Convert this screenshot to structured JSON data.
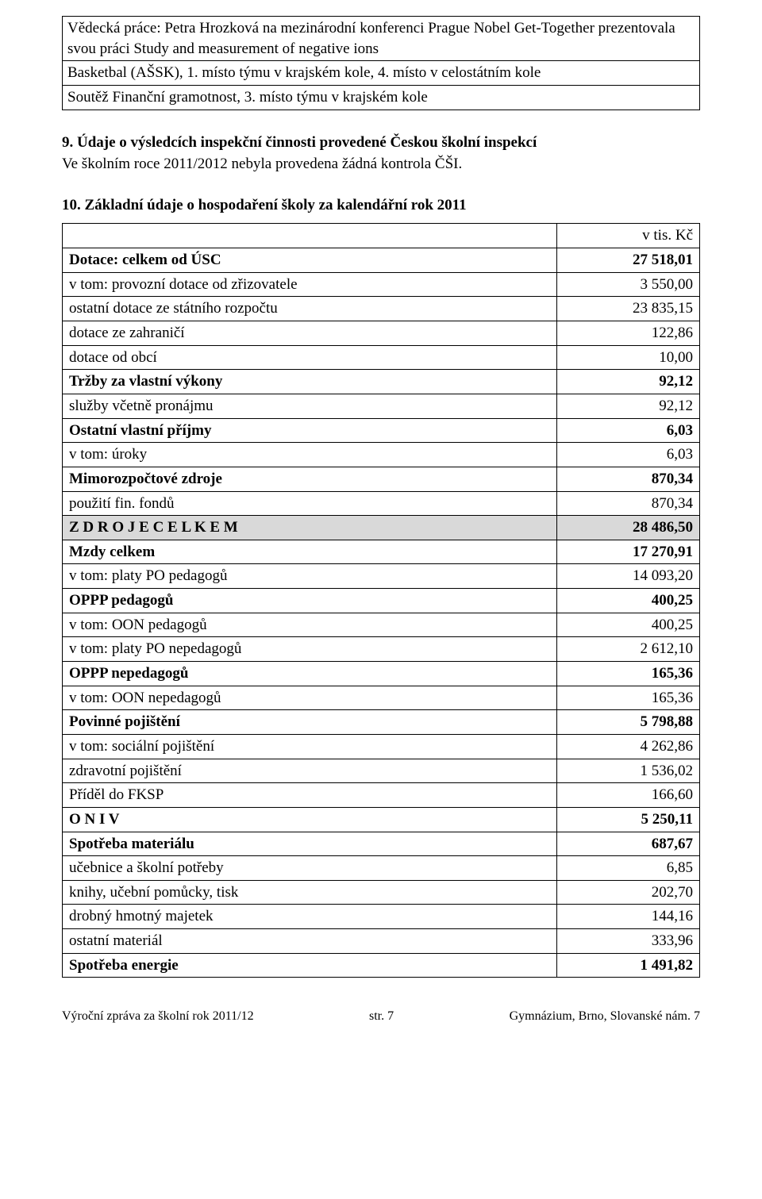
{
  "topBox": {
    "row1": "Vědecká práce: Petra Hrozková na mezinárodní konferenci Prague Nobel Get-Together prezentovala svou práci Study and measurement of negative ions",
    "row2": "Basketbal (AŠSK), 1. místo týmu v krajském kole, 4. místo v celostátním kole",
    "row3": "Soutěž Finanční gramotnost, 3. místo týmu v krajském kole"
  },
  "section9": {
    "heading": "9. Údaje o výsledcích inspekční činnosti provedené Českou školní inspekcí",
    "text": "Ve školním roce 2011/2012 nebyla provedena žádná kontrola ČŠI."
  },
  "section10": {
    "heading": "10. Základní údaje o hospodaření školy za kalendářní rok 2011",
    "header_right": "v tis. Kč",
    "rows": [
      {
        "label": "Dotace: celkem od ÚSC",
        "value": "27 518,01",
        "bold": true
      },
      {
        "label": "v tom: provozní dotace od zřizovatele",
        "value": "3 550,00"
      },
      {
        "label": "ostatní dotace ze státního rozpočtu",
        "value": "23 835,15"
      },
      {
        "label": "dotace ze zahraničí",
        "value": "122,86"
      },
      {
        "label": "dotace od obcí",
        "value": "10,00"
      },
      {
        "label": "Tržby za vlastní výkony",
        "value": "92,12",
        "bold": true
      },
      {
        "label": "služby včetně pronájmu",
        "value": "92,12"
      },
      {
        "label": "Ostatní vlastní příjmy",
        "value": "6,03",
        "bold": true
      },
      {
        "label": "v tom: úroky",
        "value": "6,03"
      },
      {
        "label": "Mimorozpočtové zdroje",
        "value": "870,34",
        "bold": true
      },
      {
        "label": "použití fin. fondů",
        "value": "870,34"
      },
      {
        "label": "Z D R O J E    C E L K E M",
        "value": "28 486,50",
        "bold": true,
        "shaded": true
      },
      {
        "label": "Mzdy celkem",
        "value": "17 270,91",
        "bold": true
      },
      {
        "label": "v tom: platy PO pedagogů",
        "value": "14 093,20"
      },
      {
        "label": "OPPP pedagogů",
        "value": "400,25",
        "bold": true
      },
      {
        "label": "v tom: OON pedagogů",
        "value": "400,25"
      },
      {
        "label": "v tom: platy PO nepedagogů",
        "value": "2 612,10"
      },
      {
        "label": "OPPP nepedagogů",
        "value": "165,36",
        "bold": true
      },
      {
        "label": "v tom: OON nepedagogů",
        "value": "165,36"
      },
      {
        "label": "Povinné pojištění",
        "value": "5 798,88",
        "bold": true
      },
      {
        "label": "v tom: sociální pojištění",
        "value": "4 262,86"
      },
      {
        "label": "zdravotní pojištění",
        "value": "1 536,02"
      },
      {
        "label": "Příděl do FKSP",
        "value": "166,60"
      },
      {
        "label": "O N I V",
        "value": "5 250,11",
        "bold": true
      },
      {
        "label": "Spotřeba materiálu",
        "value": "687,67",
        "bold": true
      },
      {
        "label": "učebnice a školní potřeby",
        "value": "6,85"
      },
      {
        "label": "knihy, učební pomůcky, tisk",
        "value": "202,70"
      },
      {
        "label": "drobný hmotný majetek",
        "value": "144,16"
      },
      {
        "label": "ostatní materiál",
        "value": "333,96"
      },
      {
        "label": "Spotřeba energie",
        "value": "1 491,82",
        "bold": true
      }
    ]
  },
  "footer": {
    "left": "Výroční zpráva za školní rok 2011/12",
    "center": "str. 7",
    "right": "Gymnázium, Brno, Slovanské nám. 7"
  }
}
